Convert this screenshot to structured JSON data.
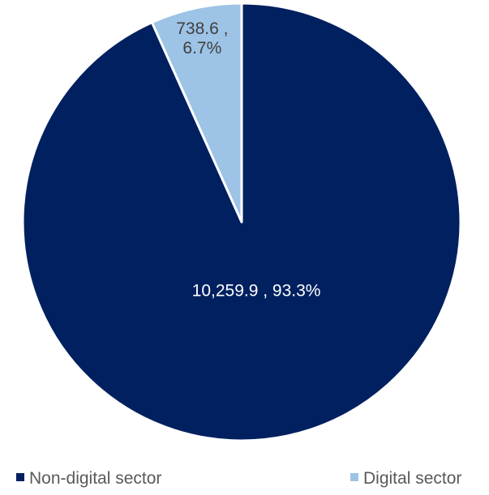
{
  "chart_data": {
    "type": "pie",
    "title": "",
    "slices": [
      {
        "name": "Non-digital sector",
        "value": 10259.9,
        "percent": 93.3,
        "label_lines": [
          "10,259.9 , 93.3%"
        ],
        "color": "#002060",
        "label_color": "#ffffff"
      },
      {
        "name": "Digital sector",
        "value": 738.6,
        "percent": 6.7,
        "label_lines": [
          "738.6 ,",
          "6.7%"
        ],
        "color": "#9DC3E6",
        "label_color": "#404040"
      }
    ],
    "legend": {
      "position": "bottom",
      "entries": [
        "Non-digital sector",
        "Digital sector"
      ]
    }
  }
}
